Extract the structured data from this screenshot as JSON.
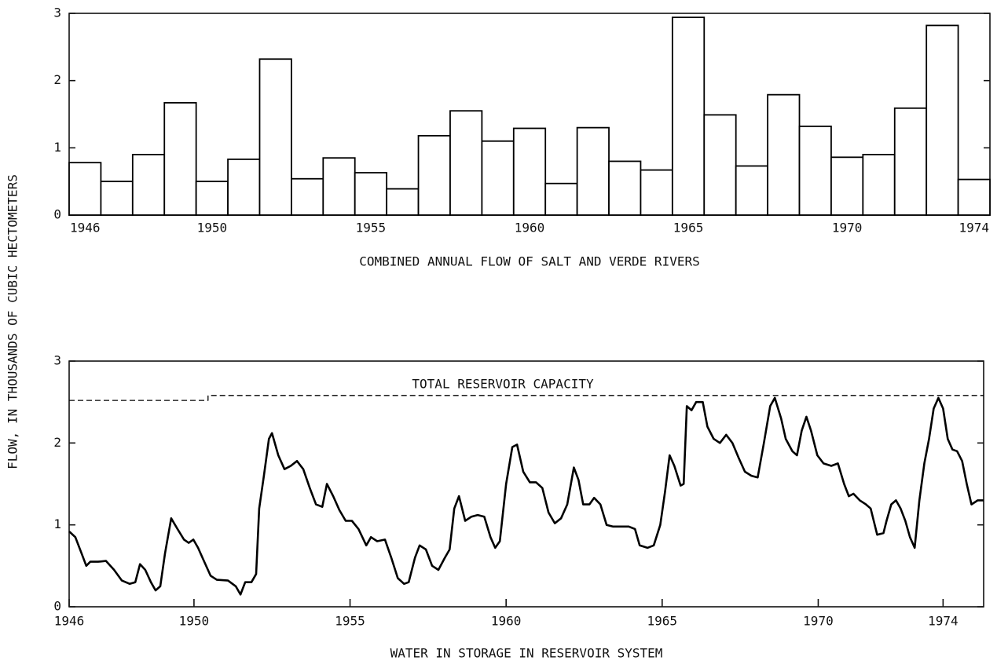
{
  "ylabel": "FLOW, IN THOUSANDS OF CUBIC HECTOMETERS",
  "chart_data": [
    {
      "type": "bar",
      "xlabel": "COMBINED ANNUAL FLOW OF SALT AND VERDE RIVERS",
      "categories": [
        "1946",
        null,
        null,
        null,
        "1950",
        null,
        null,
        null,
        null,
        "1955",
        null,
        null,
        null,
        null,
        "1960",
        null,
        null,
        null,
        null,
        "1965",
        null,
        null,
        null,
        null,
        "1970",
        null,
        null,
        null,
        "1974"
      ],
      "values": [
        0.78,
        0.5,
        0.9,
        1.67,
        0.5,
        0.83,
        2.32,
        0.54,
        0.85,
        0.63,
        0.39,
        1.18,
        1.55,
        1.1,
        1.29,
        0.47,
        1.3,
        0.8,
        0.67,
        2.94,
        1.49,
        0.73,
        1.79,
        1.32,
        0.86,
        0.9,
        1.59,
        2.82,
        0.53
      ],
      "color": "#000000",
      "ylim": [
        0,
        3
      ],
      "yticks": [
        0,
        1,
        2,
        3
      ]
    },
    {
      "type": "line",
      "xlabel": "WATER IN STORAGE IN RESERVOIR SYSTEM",
      "xlim": [
        1946,
        1975.3
      ],
      "xticks": [
        1946,
        1950,
        1955,
        1960,
        1965,
        1970,
        1974
      ],
      "ylim": [
        0,
        3
      ],
      "yticks": [
        0,
        1,
        2,
        3
      ],
      "series": [
        {
          "color": "#000000",
          "style": "solid",
          "x": [
            1946.0,
            1946.2,
            1946.4,
            1946.55,
            1946.68,
            1946.93,
            1947.18,
            1947.44,
            1947.69,
            1947.94,
            1948.12,
            1948.27,
            1948.44,
            1948.62,
            1948.77,
            1948.92,
            1949.07,
            1949.27,
            1949.47,
            1949.68,
            1949.83,
            1949.98,
            1950.13,
            1950.33,
            1950.53,
            1950.73,
            1951.09,
            1951.34,
            1951.49,
            1951.64,
            1951.84,
            1951.99,
            1952.09,
            1952.24,
            1952.4,
            1952.5,
            1952.7,
            1952.9,
            1953.1,
            1953.3,
            1953.5,
            1953.71,
            1953.91,
            1954.11,
            1954.26,
            1954.46,
            1954.66,
            1954.86,
            1955.06,
            1955.27,
            1955.52,
            1955.67,
            1955.87,
            1956.12,
            1956.32,
            1956.53,
            1956.73,
            1956.88,
            1957.08,
            1957.23,
            1957.43,
            1957.63,
            1957.83,
            1958.04,
            1958.19,
            1958.34,
            1958.49,
            1958.69,
            1958.89,
            1959.09,
            1959.3,
            1959.5,
            1959.65,
            1959.8,
            1960.0,
            1960.2,
            1960.35,
            1960.55,
            1960.76,
            1960.96,
            1961.16,
            1961.36,
            1961.56,
            1961.76,
            1961.96,
            1962.17,
            1962.32,
            1962.47,
            1962.67,
            1962.82,
            1963.02,
            1963.22,
            1963.42,
            1963.68,
            1963.93,
            1964.13,
            1964.28,
            1964.53,
            1964.73,
            1964.94,
            1965.09,
            1965.24,
            1965.39,
            1965.59,
            1965.69,
            1965.79,
            1965.94,
            1966.09,
            1966.3,
            1966.45,
            1966.65,
            1966.85,
            1967.05,
            1967.25,
            1967.45,
            1967.65,
            1967.86,
            1968.06,
            1968.26,
            1968.46,
            1968.61,
            1968.81,
            1968.96,
            1969.17,
            1969.32,
            1969.47,
            1969.62,
            1969.77,
            1969.97,
            1970.17,
            1970.42,
            1970.63,
            1970.83,
            1970.98,
            1971.13,
            1971.33,
            1971.53,
            1971.68,
            1971.89,
            1972.09,
            1972.19,
            1972.34,
            1972.49,
            1972.64,
            1972.79,
            1972.94,
            1973.09,
            1973.24,
            1973.4,
            1973.55,
            1973.7,
            1973.85,
            1974.0,
            1974.15,
            1974.3,
            1974.45,
            1974.61,
            1974.76,
            1974.91,
            1975.11,
            1975.3
          ],
          "values": [
            0.92,
            0.85,
            0.65,
            0.5,
            0.55,
            0.55,
            0.56,
            0.45,
            0.32,
            0.28,
            0.3,
            0.52,
            0.45,
            0.3,
            0.2,
            0.25,
            0.65,
            1.08,
            0.95,
            0.82,
            0.78,
            0.82,
            0.72,
            0.55,
            0.38,
            0.33,
            0.32,
            0.25,
            0.15,
            0.3,
            0.3,
            0.4,
            1.2,
            1.6,
            2.05,
            2.12,
            1.85,
            1.68,
            1.72,
            1.78,
            1.68,
            1.45,
            1.25,
            1.22,
            1.5,
            1.35,
            1.18,
            1.05,
            1.05,
            0.95,
            0.75,
            0.85,
            0.8,
            0.82,
            0.6,
            0.35,
            0.28,
            0.3,
            0.6,
            0.75,
            0.7,
            0.5,
            0.45,
            0.6,
            0.7,
            1.2,
            1.35,
            1.05,
            1.1,
            1.12,
            1.1,
            0.85,
            0.72,
            0.8,
            1.5,
            1.95,
            1.98,
            1.65,
            1.52,
            1.52,
            1.45,
            1.15,
            1.02,
            1.08,
            1.25,
            1.7,
            1.55,
            1.25,
            1.25,
            1.33,
            1.25,
            1.0,
            0.98,
            0.98,
            0.98,
            0.95,
            0.75,
            0.72,
            0.75,
            1.0,
            1.4,
            1.85,
            1.72,
            1.48,
            1.5,
            2.45,
            2.4,
            2.5,
            2.5,
            2.2,
            2.05,
            2.0,
            2.1,
            2.0,
            1.82,
            1.65,
            1.6,
            1.58,
            2.0,
            2.45,
            2.55,
            2.3,
            2.05,
            1.9,
            1.85,
            2.15,
            2.32,
            2.15,
            1.85,
            1.75,
            1.72,
            1.75,
            1.5,
            1.35,
            1.38,
            1.3,
            1.25,
            1.2,
            0.88,
            0.9,
            1.05,
            1.25,
            1.3,
            1.2,
            1.05,
            0.85,
            0.72,
            1.3,
            1.75,
            2.05,
            2.42,
            2.55,
            2.42,
            2.05,
            1.92,
            1.9,
            1.78,
            1.5,
            1.25,
            1.3,
            1.3
          ]
        },
        {
          "name": "TOTAL RESERVOIR CAPACITY",
          "color": "#000000",
          "style": "dashed",
          "x": [
            1946,
            1950.45,
            1950.45,
            1975.3
          ],
          "values": [
            2.52,
            2.52,
            2.58,
            2.58
          ]
        }
      ]
    }
  ]
}
